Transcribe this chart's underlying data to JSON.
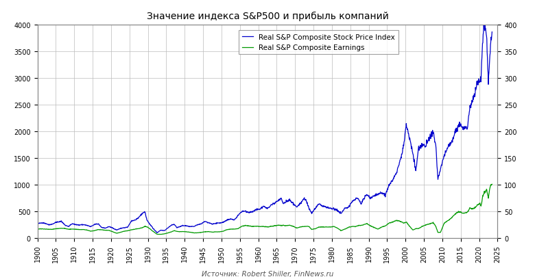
{
  "title": "Значение индекса S&P500 и прибыль компаний",
  "source_text": "Источник: Robert Shiller, FinNews.ru",
  "legend_price": "Real S&P Composite Stock Price Index",
  "legend_earnings": "Real S&P Composite Earnings",
  "price_color": "#0000CC",
  "earnings_color": "#009900",
  "background_color": "#FFFFFF",
  "grid_color": "#BBBBBB",
  "xlim": [
    1900,
    2025
  ],
  "ylim_left": [
    0,
    4000
  ],
  "ylim_right": [
    0,
    400
  ],
  "xticks": [
    1900,
    1905,
    1910,
    1915,
    1920,
    1925,
    1930,
    1935,
    1940,
    1945,
    1950,
    1955,
    1960,
    1965,
    1970,
    1975,
    1980,
    1985,
    1990,
    1995,
    2000,
    2005,
    2010,
    2015,
    2020,
    2025
  ],
  "yticks_left": [
    0,
    500,
    1000,
    1500,
    2000,
    2500,
    3000,
    3500,
    4000
  ],
  "yticks_right": [
    0,
    50,
    100,
    150,
    200,
    250,
    300,
    350,
    400
  ]
}
